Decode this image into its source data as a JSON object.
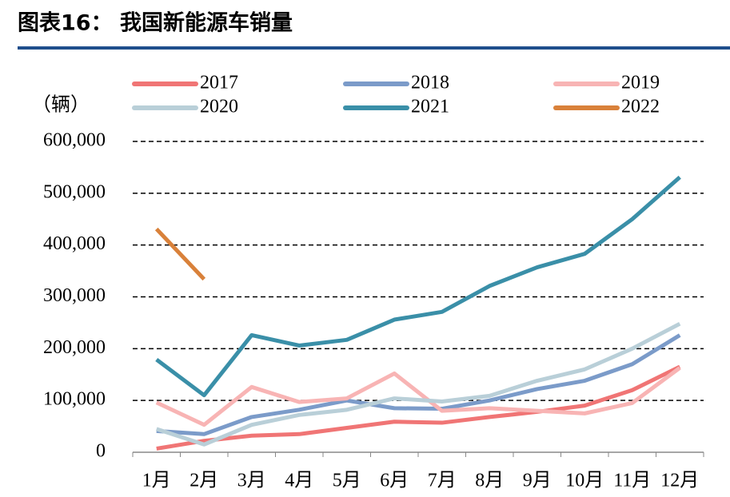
{
  "chart_data": {
    "type": "line",
    "title": "图表16：  我国新能源车销量",
    "y_label": "（辆）",
    "categories": [
      "1月",
      "2月",
      "3月",
      "4月",
      "5月",
      "6月",
      "7月",
      "8月",
      "9月",
      "10月",
      "11月",
      "12月"
    ],
    "series": [
      {
        "name": "2017",
        "color": "#f07575",
        "values": [
          7000,
          22000,
          32000,
          35000,
          47000,
          59000,
          57000,
          68000,
          78000,
          90000,
          120000,
          165000
        ]
      },
      {
        "name": "2018",
        "color": "#7b9bc9",
        "values": [
          41000,
          35000,
          68000,
          82000,
          100000,
          85000,
          84000,
          100000,
          122000,
          138000,
          170000,
          226000
        ]
      },
      {
        "name": "2019",
        "color": "#f8b4b4",
        "values": [
          96000,
          53000,
          126000,
          97000,
          104000,
          152000,
          80000,
          85000,
          80000,
          75000,
          95000,
          163000
        ]
      },
      {
        "name": "2020",
        "color": "#b9cfd8",
        "values": [
          45000,
          15000,
          53000,
          72000,
          82000,
          104000,
          98000,
          109000,
          138000,
          160000,
          200000,
          248000
        ]
      },
      {
        "name": "2021",
        "color": "#3a8fa8",
        "values": [
          179000,
          110000,
          226000,
          206000,
          217000,
          256000,
          271000,
          321000,
          357000,
          383000,
          450000,
          531000
        ]
      },
      {
        "name": "2022",
        "color": "#d9813a",
        "values": [
          431000,
          334000,
          null,
          null,
          null,
          null,
          null,
          null,
          null,
          null,
          null,
          null
        ]
      }
    ],
    "ylim": [
      0,
      600000
    ],
    "yticks": [
      0,
      {
        "value": 100000,
        "label": "100,000"
      },
      {
        "value": 200000,
        "label": "200,000"
      },
      {
        "value": 300000,
        "label": "300,000"
      },
      {
        "value": 400000,
        "label": "400,000"
      },
      {
        "value": 500000,
        "label": "500,000"
      },
      {
        "value": 600000,
        "label": "600,000"
      }
    ],
    "grid": true
  }
}
